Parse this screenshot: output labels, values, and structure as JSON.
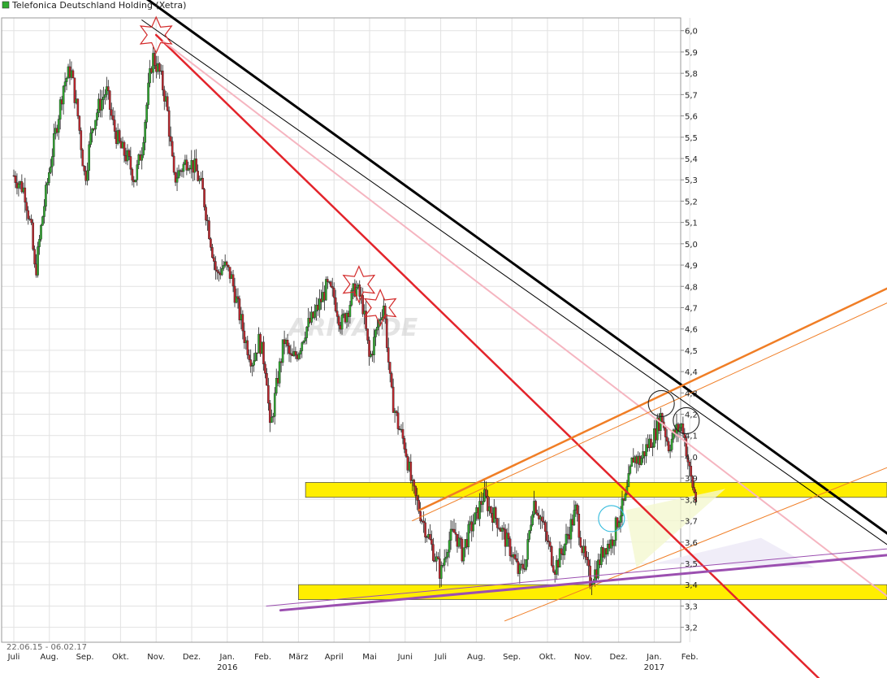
{
  "header": {
    "title": "Telefonica Deutschland Holding (Xetra)",
    "legend_color": "#2faa2f"
  },
  "footer": {
    "date_range": "22.06.15 - 06.02.17"
  },
  "watermark": "ARIVA.DE",
  "chart_data": {
    "type": "candlestick",
    "title": "Telefonica Deutschland Holding (Xetra)",
    "xlabel": "",
    "ylabel": "",
    "ylim": [
      3.13,
      6.06
    ],
    "grid": true,
    "y_ticks": [
      3.2,
      3.3,
      3.4,
      3.5,
      3.6,
      3.7,
      3.8,
      3.9,
      4.0,
      4.1,
      4.2,
      4.3,
      4.4,
      4.5,
      4.6,
      4.7,
      4.8,
      4.9,
      5.0,
      5.1,
      5.2,
      5.3,
      5.4,
      5.5,
      5.6,
      5.7,
      5.8,
      5.9,
      6.0
    ],
    "x_ticks": [
      {
        "label": "Juli",
        "year": ""
      },
      {
        "label": "Aug.",
        "year": ""
      },
      {
        "label": "Sep.",
        "year": ""
      },
      {
        "label": "Okt.",
        "year": ""
      },
      {
        "label": "Nov.",
        "year": ""
      },
      {
        "label": "Dez.",
        "year": ""
      },
      {
        "label": "Jan.",
        "year": "2016"
      },
      {
        "label": "Feb.",
        "year": ""
      },
      {
        "label": "März",
        "year": ""
      },
      {
        "label": "April",
        "year": ""
      },
      {
        "label": "Mai",
        "year": ""
      },
      {
        "label": "Juni",
        "year": ""
      },
      {
        "label": "Juli",
        "year": ""
      },
      {
        "label": "Aug.",
        "year": ""
      },
      {
        "label": "Sep.",
        "year": ""
      },
      {
        "label": "Okt.",
        "year": ""
      },
      {
        "label": "Nov.",
        "year": ""
      },
      {
        "label": "Dez.",
        "year": ""
      },
      {
        "label": "Jan.",
        "year": "2017"
      },
      {
        "label": "Feb.",
        "year": ""
      }
    ],
    "price_path": [
      {
        "m": 0.0,
        "v": 5.32
      },
      {
        "m": 0.3,
        "v": 5.25
      },
      {
        "m": 0.5,
        "v": 5.05
      },
      {
        "m": 0.6,
        "v": 4.85
      },
      {
        "m": 0.8,
        "v": 5.12
      },
      {
        "m": 1.0,
        "v": 5.35
      },
      {
        "m": 1.2,
        "v": 5.55
      },
      {
        "m": 1.4,
        "v": 5.75
      },
      {
        "m": 1.6,
        "v": 5.82
      },
      {
        "m": 1.8,
        "v": 5.6
      },
      {
        "m": 2.0,
        "v": 5.3
      },
      {
        "m": 2.2,
        "v": 5.55
      },
      {
        "m": 2.4,
        "v": 5.65
      },
      {
        "m": 2.6,
        "v": 5.72
      },
      {
        "m": 2.8,
        "v": 5.55
      },
      {
        "m": 3.0,
        "v": 5.45
      },
      {
        "m": 3.2,
        "v": 5.4
      },
      {
        "m": 3.4,
        "v": 5.3
      },
      {
        "m": 3.6,
        "v": 5.45
      },
      {
        "m": 3.8,
        "v": 5.75
      },
      {
        "m": 3.9,
        "v": 5.88
      },
      {
        "m": 4.1,
        "v": 5.8
      },
      {
        "m": 4.3,
        "v": 5.65
      },
      {
        "m": 4.5,
        "v": 5.3
      },
      {
        "m": 4.7,
        "v": 5.35
      },
      {
        "m": 4.9,
        "v": 5.4
      },
      {
        "m": 5.1,
        "v": 5.35
      },
      {
        "m": 5.3,
        "v": 5.25
      },
      {
        "m": 5.5,
        "v": 5.05
      },
      {
        "m": 5.7,
        "v": 4.85
      },
      {
        "m": 5.9,
        "v": 4.9
      },
      {
        "m": 6.1,
        "v": 4.85
      },
      {
        "m": 6.3,
        "v": 4.7
      },
      {
        "m": 6.5,
        "v": 4.55
      },
      {
        "m": 6.7,
        "v": 4.45
      },
      {
        "m": 6.9,
        "v": 4.55
      },
      {
        "m": 7.1,
        "v": 4.4
      },
      {
        "m": 7.2,
        "v": 4.12
      },
      {
        "m": 7.4,
        "v": 4.35
      },
      {
        "m": 7.6,
        "v": 4.55
      },
      {
        "m": 7.8,
        "v": 4.45
      },
      {
        "m": 8.0,
        "v": 4.5
      },
      {
        "m": 8.2,
        "v": 4.6
      },
      {
        "m": 8.4,
        "v": 4.65
      },
      {
        "m": 8.6,
        "v": 4.72
      },
      {
        "m": 8.8,
        "v": 4.8
      },
      {
        "m": 9.0,
        "v": 4.75
      },
      {
        "m": 9.2,
        "v": 4.62
      },
      {
        "m": 9.4,
        "v": 4.7
      },
      {
        "m": 9.6,
        "v": 4.8
      },
      {
        "m": 9.8,
        "v": 4.72
      },
      {
        "m": 10.0,
        "v": 4.45
      },
      {
        "m": 10.2,
        "v": 4.6
      },
      {
        "m": 10.4,
        "v": 4.72
      },
      {
        "m": 10.6,
        "v": 4.3
      },
      {
        "m": 10.8,
        "v": 4.15
      },
      {
        "m": 11.0,
        "v": 4.05
      },
      {
        "m": 11.2,
        "v": 3.85
      },
      {
        "m": 11.4,
        "v": 3.75
      },
      {
        "m": 11.6,
        "v": 3.65
      },
      {
        "m": 11.8,
        "v": 3.55
      },
      {
        "m": 12.0,
        "v": 3.45
      },
      {
        "m": 12.2,
        "v": 3.6
      },
      {
        "m": 12.4,
        "v": 3.65
      },
      {
        "m": 12.6,
        "v": 3.55
      },
      {
        "m": 12.8,
        "v": 3.65
      },
      {
        "m": 13.0,
        "v": 3.72
      },
      {
        "m": 13.2,
        "v": 3.82
      },
      {
        "m": 13.4,
        "v": 3.75
      },
      {
        "m": 13.6,
        "v": 3.7
      },
      {
        "m": 13.8,
        "v": 3.62
      },
      {
        "m": 14.0,
        "v": 3.55
      },
      {
        "m": 14.2,
        "v": 3.45
      },
      {
        "m": 14.4,
        "v": 3.52
      },
      {
        "m": 14.6,
        "v": 3.8
      },
      {
        "m": 14.8,
        "v": 3.72
      },
      {
        "m": 15.0,
        "v": 3.6
      },
      {
        "m": 15.2,
        "v": 3.48
      },
      {
        "m": 15.4,
        "v": 3.55
      },
      {
        "m": 15.6,
        "v": 3.65
      },
      {
        "m": 15.8,
        "v": 3.75
      },
      {
        "m": 16.0,
        "v": 3.55
      },
      {
        "m": 16.2,
        "v": 3.42
      },
      {
        "m": 16.4,
        "v": 3.48
      },
      {
        "m": 16.6,
        "v": 3.58
      },
      {
        "m": 16.8,
        "v": 3.6
      },
      {
        "m": 17.0,
        "v": 3.72
      },
      {
        "m": 17.2,
        "v": 3.8
      },
      {
        "m": 17.4,
        "v": 4.0
      },
      {
        "m": 17.6,
        "v": 3.98
      },
      {
        "m": 17.8,
        "v": 4.05
      },
      {
        "m": 18.0,
        "v": 4.1
      },
      {
        "m": 18.2,
        "v": 4.2
      },
      {
        "m": 18.4,
        "v": 4.05
      },
      {
        "m": 18.6,
        "v": 4.12
      },
      {
        "m": 18.8,
        "v": 4.15
      },
      {
        "m": 19.0,
        "v": 3.92
      },
      {
        "m": 19.1,
        "v": 3.85
      },
      {
        "m": 19.2,
        "v": 3.78
      }
    ],
    "trendlines": [
      {
        "color": "#000000",
        "width": 3,
        "from": {
          "m": 2.9,
          "v": 6.25
        },
        "to": {
          "m": 25.3,
          "v": 3.55
        }
      },
      {
        "color": "#000000",
        "width": 1,
        "from": {
          "m": 3.6,
          "v": 6.05
        },
        "to": {
          "m": 25.3,
          "v": 3.5
        }
      },
      {
        "color": "#e3242b",
        "width": 2.5,
        "from": {
          "m": 4.0,
          "v": 5.98
        },
        "to": {
          "m": 23.0,
          "v": 2.9
        }
      },
      {
        "color": "#f5b5c0",
        "width": 2,
        "from": {
          "m": 4.2,
          "v": 5.95
        },
        "to": {
          "m": 25.3,
          "v": 3.25
        }
      },
      {
        "color": "#f07e26",
        "width": 2.5,
        "from": {
          "m": 11.4,
          "v": 3.75
        },
        "to": {
          "m": 25.3,
          "v": 4.85
        }
      },
      {
        "color": "#f07e26",
        "width": 1,
        "from": {
          "m": 11.2,
          "v": 3.7
        },
        "to": {
          "m": 25.3,
          "v": 4.78
        }
      },
      {
        "color": "#f07e26",
        "width": 1,
        "from": {
          "m": 13.8,
          "v": 3.23
        },
        "to": {
          "m": 25.3,
          "v": 4.0
        }
      },
      {
        "color": "#9b4fb0",
        "width": 3,
        "from": {
          "m": 7.5,
          "v": 3.28
        },
        "to": {
          "m": 25.3,
          "v": 3.55
        }
      },
      {
        "color": "#9b4fb0",
        "width": 1,
        "from": {
          "m": 7.1,
          "v": 3.3
        },
        "to": {
          "m": 25.3,
          "v": 3.58
        }
      }
    ],
    "zones": [
      {
        "color": "#ffee00",
        "from_m": 8.2,
        "to_m": 25.3,
        "low": 3.81,
        "high": 3.88
      },
      {
        "color": "#ffee00",
        "from_m": 8.0,
        "to_m": 25.3,
        "low": 3.33,
        "high": 3.4
      }
    ],
    "shaded_triangles": [
      {
        "color": "#f4f8d0",
        "points": [
          {
            "m": 17.2,
            "v": 3.75
          },
          {
            "m": 20.0,
            "v": 3.85
          },
          {
            "m": 17.5,
            "v": 3.48
          }
        ]
      },
      {
        "color": "#ece8f6",
        "points": [
          {
            "m": 18.0,
            "v": 3.5
          },
          {
            "m": 21.0,
            "v": 3.62
          },
          {
            "m": 22.5,
            "v": 3.48
          }
        ]
      }
    ],
    "annotation_stars": [
      {
        "m": 4.0,
        "v": 5.98
      },
      {
        "m": 9.7,
        "v": 4.81
      },
      {
        "m": 10.3,
        "v": 4.7
      }
    ],
    "annotation_circles": [
      {
        "m": 18.2,
        "v": 4.25,
        "color": "#222222"
      },
      {
        "m": 18.9,
        "v": 4.17,
        "color": "#222222"
      },
      {
        "m": 16.8,
        "v": 3.71,
        "color": "#33bbdd"
      }
    ]
  }
}
